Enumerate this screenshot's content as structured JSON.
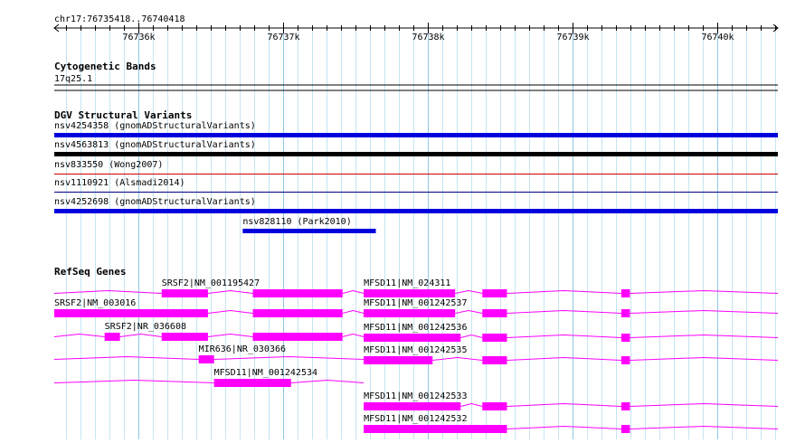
{
  "ruler": {
    "location": "chr17:76735418..76740418",
    "start": 76735418,
    "end": 76740418,
    "ticks": [
      "76736k",
      "76737k",
      "76738k",
      "76739k",
      "76740k"
    ]
  },
  "tracks": [
    {
      "title": "Cytogenetic Bands",
      "features": [
        {
          "label": "17q25.1"
        }
      ]
    },
    {
      "title": "DGV Structural Variants",
      "features": [
        {
          "label": "nsv4254358 (gnomADStructuralVariants)",
          "start": 76735418,
          "end": 76740418,
          "color": "#0000dd",
          "style": "thick"
        },
        {
          "label": "nsv4563813 (gnomADStructuralVariants)",
          "start": 76735418,
          "end": 76740418,
          "color": "#000000",
          "style": "thick"
        },
        {
          "label": "nsv833550 (Wong2007)",
          "start": 76735418,
          "end": 76740418,
          "color": "#cc0000",
          "style": "thin"
        },
        {
          "label": "nsv1110921 (Alsmadi2014)",
          "start": 76735418,
          "end": 76740418,
          "color": "#000080",
          "style": "thin"
        },
        {
          "label": "nsv4252698 (gnomADStructuralVariants)",
          "start": 76735418,
          "end": 76740418,
          "color": "#0000dd",
          "style": "thick"
        },
        {
          "label": "nsv828110 (Park2010)",
          "start": 76736720,
          "end": 76737640,
          "color": "#0000dd",
          "style": "thick"
        }
      ]
    },
    {
      "title": "RefSeq Genes",
      "color": "#ff00ff",
      "genes": [
        {
          "label": "SRSF2|NM_001195427",
          "start": 76735418,
          "end": 76737556,
          "exons": [
            [
              76736160,
              76736480
            ],
            [
              76736790,
              76737410
            ]
          ]
        },
        {
          "label": "SRSF2|NM_003016",
          "start": 76735418,
          "end": 76737556,
          "exons": [
            [
              76735418,
              76736480
            ],
            [
              76736790,
              76737410
            ]
          ]
        },
        {
          "label": "SRSF2|NR_036608",
          "start": 76735418,
          "end": 76737556,
          "exons": [
            [
              76735766,
              76735872
            ],
            [
              76736160,
              76736480
            ],
            [
              76736790,
              76737410
            ]
          ]
        },
        {
          "label": "MIR636|NR_030366",
          "start": 76735418,
          "end": 76737556,
          "exons": [
            [
              76736416,
              76736522
            ]
          ]
        },
        {
          "label": "MFSD11|NM_001242534",
          "start": 76735418,
          "end": 76737556,
          "exons": [
            [
              76736522,
              76737054
            ]
          ]
        },
        {
          "label": "MFSD11|NM_024311",
          "start": 76737556,
          "end": 76740418,
          "exons": [
            [
              76737556,
              76738188
            ],
            [
              76738376,
              76738546
            ],
            [
              76739336,
              76739396
            ]
          ]
        },
        {
          "label": "MFSD11|NM_001242537",
          "start": 76737556,
          "end": 76740418,
          "exons": [
            [
              76737556,
              76738188
            ],
            [
              76738376,
              76738546
            ],
            [
              76739336,
              76739396
            ]
          ]
        },
        {
          "label": "MFSD11|NM_001242536",
          "start": 76737556,
          "end": 76740418,
          "exons": [
            [
              76737556,
              76738226
            ],
            [
              76738376,
              76738546
            ],
            [
              76739336,
              76739396
            ]
          ]
        },
        {
          "label": "MFSD11|NM_001242535",
          "start": 76737556,
          "end": 76740418,
          "exons": [
            [
              76737556,
              76738032
            ],
            [
              76738376,
              76738546
            ],
            [
              76739336,
              76739396
            ]
          ]
        },
        {
          "label": "MFSD11|NM_001242533",
          "start": 76737556,
          "end": 76740418,
          "exons": [
            [
              76737556,
              76738226
            ],
            [
              76738376,
              76738546
            ],
            [
              76739336,
              76739396
            ]
          ]
        },
        {
          "label": "MFSD11|NM_001242532",
          "start": 76737556,
          "end": 76740418,
          "exons": [
            [
              76737556,
              76738546
            ],
            [
              76739336,
              76739396
            ]
          ]
        }
      ]
    }
  ]
}
